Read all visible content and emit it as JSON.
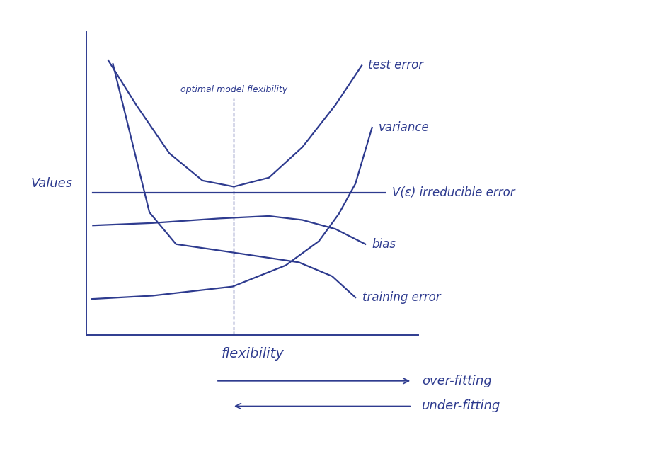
{
  "chart_data": {
    "type": "line",
    "x_label": "flexibility",
    "y_label": "Values",
    "xlim": [
      0,
      10
    ],
    "ylim": [
      0,
      10
    ],
    "tick_labels": false,
    "series": [
      {
        "name": "test error",
        "color": "#2e3b8f",
        "x": [
          0.66,
          1.5,
          2.5,
          3.5,
          4.44,
          5.5,
          6.5,
          7.5,
          8.29
        ],
        "values": [
          9.07,
          7.6,
          6.0,
          5.1,
          4.9,
          5.2,
          6.2,
          7.6,
          8.9
        ]
      },
      {
        "name": "variance",
        "color": "#2e3b8f",
        "x": [
          0.17,
          2.0,
          4.4,
          6.0,
          7.0,
          7.6,
          8.1,
          8.6
        ],
        "values": [
          1.19,
          1.3,
          1.6,
          2.3,
          3.1,
          4.0,
          5.0,
          6.85
        ]
      },
      {
        "name": "V(ε) irreducible error",
        "color": "#2e3b8f",
        "x": [
          0.2,
          9.0
        ],
        "values": [
          4.7,
          4.7
        ]
      },
      {
        "name": "bias",
        "color": "#2e3b8f",
        "x": [
          0.2,
          2.0,
          4.0,
          5.5,
          6.5,
          7.5,
          8.4
        ],
        "values": [
          3.62,
          3.7,
          3.85,
          3.93,
          3.8,
          3.5,
          3.0
        ]
      },
      {
        "name": "training error",
        "color": "#2e3b8f",
        "x": [
          0.8,
          1.9,
          2.7,
          4.2,
          6.4,
          7.4,
          8.1
        ],
        "values": [
          8.95,
          4.05,
          3.0,
          2.76,
          2.4,
          1.94,
          1.24
        ]
      }
    ],
    "vertical_line": {
      "label": "optimal model flexibility",
      "x": 4.44,
      "line_style": "dashed",
      "color": "#2e3b8f"
    },
    "arrows": [
      {
        "label": "over-fitting",
        "direction": "right",
        "color": "#2e3b8f"
      },
      {
        "label": "under-fitting",
        "direction": "left",
        "color": "#2e3b8f"
      }
    ]
  }
}
